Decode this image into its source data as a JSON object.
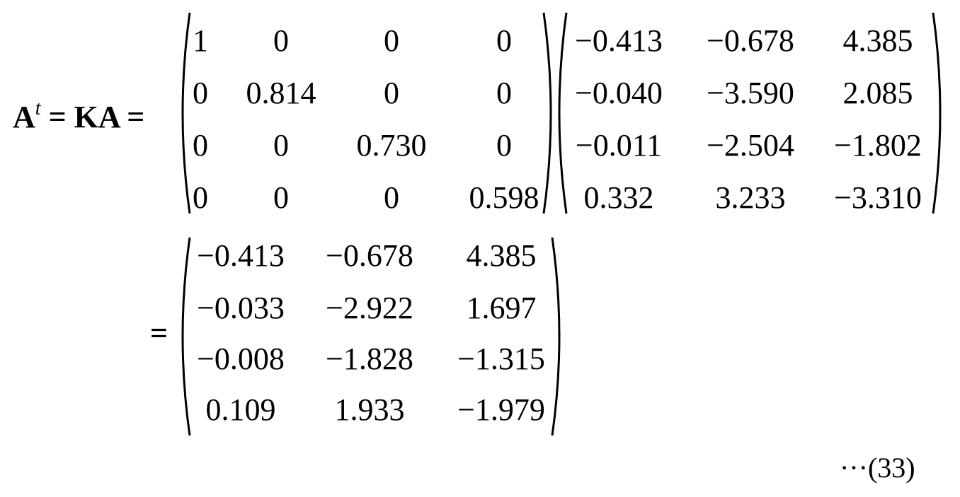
{
  "equation": {
    "lhs_symbol": "A",
    "lhs_superscript": "t",
    "equals": "=",
    "middle_symbol": "KA",
    "matrix_K": [
      [
        "1",
        "0",
        "0",
        "0"
      ],
      [
        "0",
        "0.814",
        "0",
        "0"
      ],
      [
        "0",
        "0",
        "0.730",
        "0"
      ],
      [
        "0",
        "0",
        "0",
        "0.598"
      ]
    ],
    "matrix_A": [
      [
        "−0.413",
        "−0.678",
        "4.385"
      ],
      [
        "−0.040",
        "−3.590",
        "2.085"
      ],
      [
        "−0.011",
        "−2.504",
        "−1.802"
      ],
      [
        "0.332",
        "3.233",
        "−3.310"
      ]
    ],
    "result": [
      [
        "−0.413",
        "−0.678",
        "4.385"
      ],
      [
        "−0.033",
        "−2.922",
        "1.697"
      ],
      [
        "−0.008",
        "−1.828",
        "−1.315"
      ],
      [
        "0.109",
        "1.933",
        "−1.979"
      ]
    ],
    "number": "···(33)"
  }
}
